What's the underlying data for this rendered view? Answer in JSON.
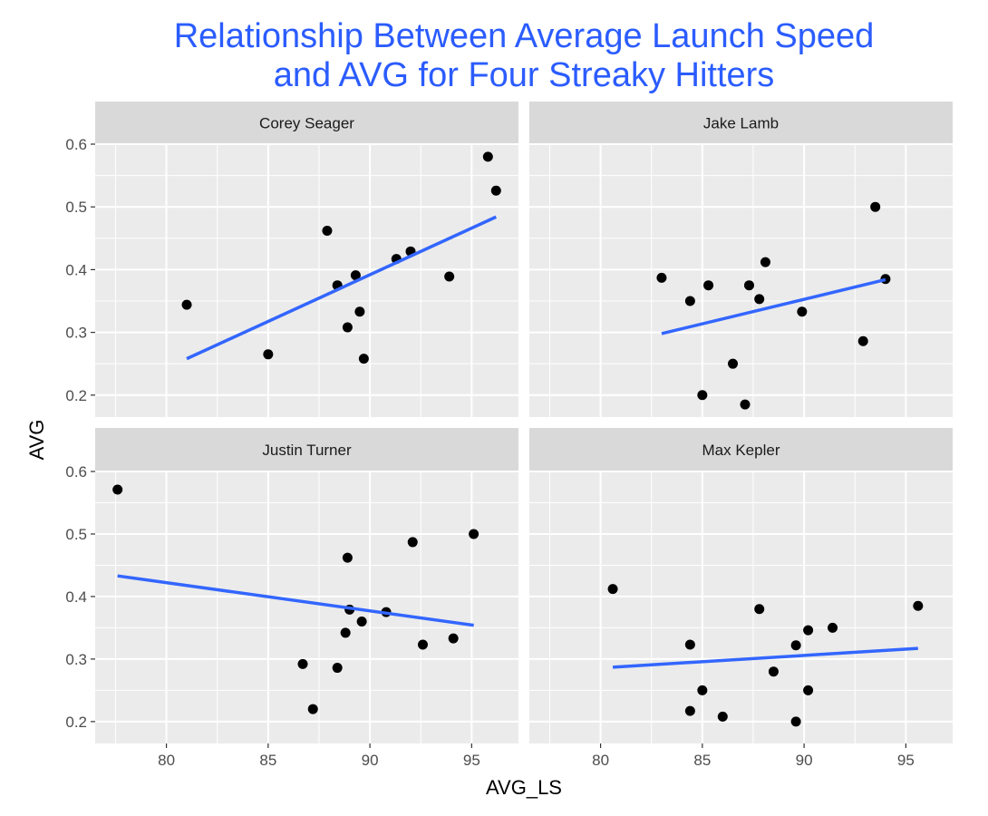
{
  "chart_data": {
    "type": "scatter",
    "title_line1": "Relationship Between Average Launch Speed",
    "title_line2": "and AVG for Four Streaky Hitters",
    "xlabel": "AVG_LS",
    "ylabel": "AVG",
    "xlim": [
      76.5,
      97.3
    ],
    "ylim": [
      0.165,
      0.6
    ],
    "x_ticks": [
      80,
      85,
      90,
      95
    ],
    "y_ticks": [
      0.2,
      0.3,
      0.4,
      0.5,
      0.6
    ],
    "x_tick_labels": [
      "80",
      "85",
      "90",
      "95"
    ],
    "y_tick_labels": [
      "0.2",
      "0.3",
      "0.4",
      "0.5",
      "0.6"
    ],
    "grid": true,
    "facet_layout": "2x2",
    "trend": "linear fit",
    "colors": {
      "title": "#2b5cff",
      "fit_line": "#3366ff",
      "points": "#000000",
      "panel_background": "#ebebeb",
      "strip_background": "#d9d9d9",
      "grid": "#ffffff"
    },
    "panels": [
      {
        "name": "Corey Seager",
        "points": [
          {
            "x": 81.0,
            "y": 0.344
          },
          {
            "x": 85.0,
            "y": 0.265
          },
          {
            "x": 87.9,
            "y": 0.462
          },
          {
            "x": 88.4,
            "y": 0.375
          },
          {
            "x": 88.9,
            "y": 0.308
          },
          {
            "x": 89.3,
            "y": 0.391
          },
          {
            "x": 89.5,
            "y": 0.333
          },
          {
            "x": 89.7,
            "y": 0.258
          },
          {
            "x": 91.3,
            "y": 0.417
          },
          {
            "x": 92.0,
            "y": 0.429
          },
          {
            "x": 93.9,
            "y": 0.389
          },
          {
            "x": 95.8,
            "y": 0.58
          },
          {
            "x": 96.2,
            "y": 0.526
          }
        ],
        "fit": {
          "x": [
            81.0,
            96.2
          ],
          "y": [
            0.258,
            0.484
          ]
        }
      },
      {
        "name": "Jake Lamb",
        "points": [
          {
            "x": 83.0,
            "y": 0.387
          },
          {
            "x": 84.4,
            "y": 0.35
          },
          {
            "x": 85.0,
            "y": 0.2
          },
          {
            "x": 85.3,
            "y": 0.375
          },
          {
            "x": 86.5,
            "y": 0.25
          },
          {
            "x": 87.1,
            "y": 0.185
          },
          {
            "x": 87.3,
            "y": 0.375
          },
          {
            "x": 87.8,
            "y": 0.353
          },
          {
            "x": 88.1,
            "y": 0.412
          },
          {
            "x": 89.9,
            "y": 0.333
          },
          {
            "x": 92.9,
            "y": 0.286
          },
          {
            "x": 93.5,
            "y": 0.5
          },
          {
            "x": 94.0,
            "y": 0.385
          }
        ],
        "fit": {
          "x": [
            83.0,
            94.0
          ],
          "y": [
            0.298,
            0.384
          ]
        }
      },
      {
        "name": "Justin Turner",
        "points": [
          {
            "x": 77.6,
            "y": 0.571
          },
          {
            "x": 86.7,
            "y": 0.292
          },
          {
            "x": 87.2,
            "y": 0.22
          },
          {
            "x": 88.4,
            "y": 0.286
          },
          {
            "x": 88.8,
            "y": 0.342
          },
          {
            "x": 88.9,
            "y": 0.462
          },
          {
            "x": 89.0,
            "y": 0.379
          },
          {
            "x": 89.6,
            "y": 0.36
          },
          {
            "x": 90.8,
            "y": 0.375
          },
          {
            "x": 92.1,
            "y": 0.487
          },
          {
            "x": 92.6,
            "y": 0.323
          },
          {
            "x": 94.1,
            "y": 0.333
          },
          {
            "x": 95.1,
            "y": 0.5
          }
        ],
        "fit": {
          "x": [
            77.6,
            95.1
          ],
          "y": [
            0.433,
            0.354
          ]
        }
      },
      {
        "name": "Max Kepler",
        "points": [
          {
            "x": 80.6,
            "y": 0.412
          },
          {
            "x": 84.4,
            "y": 0.323
          },
          {
            "x": 84.4,
            "y": 0.217
          },
          {
            "x": 85.0,
            "y": 0.25
          },
          {
            "x": 86.0,
            "y": 0.208
          },
          {
            "x": 87.8,
            "y": 0.38
          },
          {
            "x": 88.5,
            "y": 0.28
          },
          {
            "x": 89.6,
            "y": 0.322
          },
          {
            "x": 89.6,
            "y": 0.2
          },
          {
            "x": 90.2,
            "y": 0.346
          },
          {
            "x": 90.2,
            "y": 0.25
          },
          {
            "x": 91.4,
            "y": 0.35
          },
          {
            "x": 95.6,
            "y": 0.385
          }
        ],
        "fit": {
          "x": [
            80.6,
            95.6
          ],
          "y": [
            0.287,
            0.317
          ]
        }
      }
    ]
  }
}
